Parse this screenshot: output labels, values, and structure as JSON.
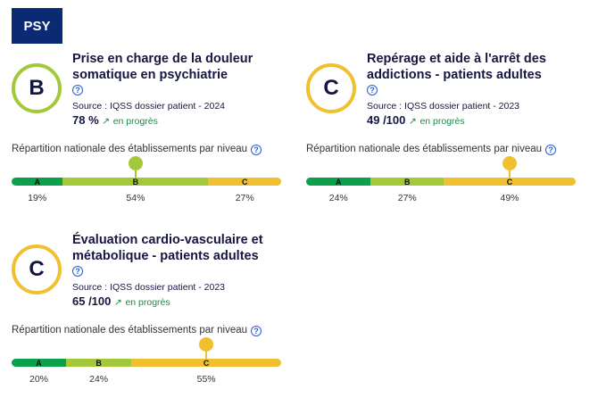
{
  "category_badge": "PSY",
  "colors": {
    "A": "#0aa14a",
    "B": "#a3c93a",
    "C": "#f0c030"
  },
  "indicators": [
    {
      "grade": "B",
      "title": "Prise en charge de la douleur somatique en psychiatrie",
      "help": "?",
      "source": "Source : IQSS dossier patient - 2024",
      "score": "78 %",
      "trend_icon": "arrow-up-right-icon",
      "trend": "en progrès",
      "distribution_label": "Répartition nationale des établissements par niveau",
      "levels": [
        {
          "label": "A",
          "percent": 19,
          "text": "19%"
        },
        {
          "label": "B",
          "percent": 54,
          "text": "54%"
        },
        {
          "label": "C",
          "percent": 27,
          "text": "27%"
        }
      ]
    },
    {
      "grade": "C",
      "title": "Repérage et aide à l'arrêt des addictions - patients adultes",
      "help": "?",
      "source": "Source : IQSS dossier patient - 2023",
      "score": "49 /100",
      "trend_icon": "arrow-up-right-icon",
      "trend": "en progrès",
      "distribution_label": "Répartition nationale des établissements par niveau",
      "levels": [
        {
          "label": "A",
          "percent": 24,
          "text": "24%"
        },
        {
          "label": "B",
          "percent": 27,
          "text": "27%"
        },
        {
          "label": "C",
          "percent": 49,
          "text": "49%"
        }
      ]
    },
    {
      "grade": "C",
      "title": "Évaluation cardio-vasculaire et métabolique - patients adultes",
      "help": "?",
      "source": "Source : IQSS dossier patient - 2023",
      "score": "65 /100",
      "trend_icon": "arrow-up-right-icon",
      "trend": "en progrès",
      "distribution_label": "Répartition nationale des établissements par niveau",
      "levels": [
        {
          "label": "A",
          "percent": 20,
          "text": "20%"
        },
        {
          "label": "B",
          "percent": 24,
          "text": "24%"
        },
        {
          "label": "C",
          "percent": 55,
          "text": "55%"
        }
      ]
    }
  ]
}
